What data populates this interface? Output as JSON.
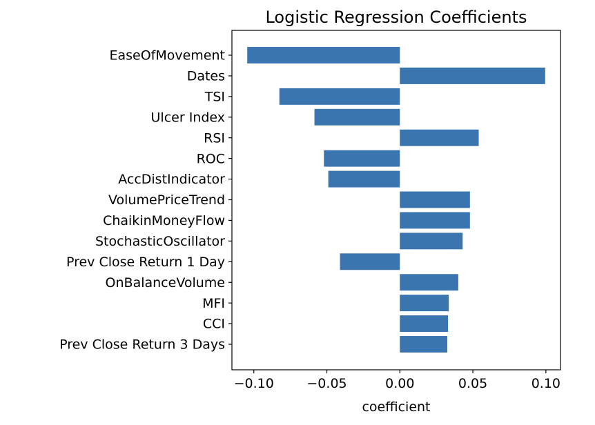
{
  "chart_data": {
    "type": "bar",
    "orientation": "horizontal",
    "title": "Logistic Regression Coefficients",
    "xlabel": "coefficient",
    "ylabel": "",
    "xlim": [
      -0.115,
      0.11
    ],
    "xticks": [
      -0.1,
      -0.05,
      0.0,
      0.05,
      0.1
    ],
    "xtick_labels": [
      "−0.10",
      "−0.05",
      "0.00",
      "0.05",
      "0.10"
    ],
    "grid": false,
    "bar_color": "#3a75b0",
    "categories": [
      "EaseOfMovement",
      "Dates",
      "TSI",
      "Ulcer Index",
      "RSI",
      "ROC",
      "AccDistIndicator",
      "VolumePriceTrend",
      "ChaikinMoneyFlow",
      "StochasticOscillator",
      "Prev Close Return 1 Day",
      "OnBalanceVolume",
      "MFI",
      "CCI",
      "Prev Close Return 3 Days"
    ],
    "values": [
      -0.1045,
      0.0995,
      -0.0825,
      -0.0585,
      0.054,
      -0.052,
      -0.049,
      0.048,
      0.048,
      0.043,
      -0.041,
      0.04,
      0.0335,
      0.033,
      0.0325
    ]
  }
}
